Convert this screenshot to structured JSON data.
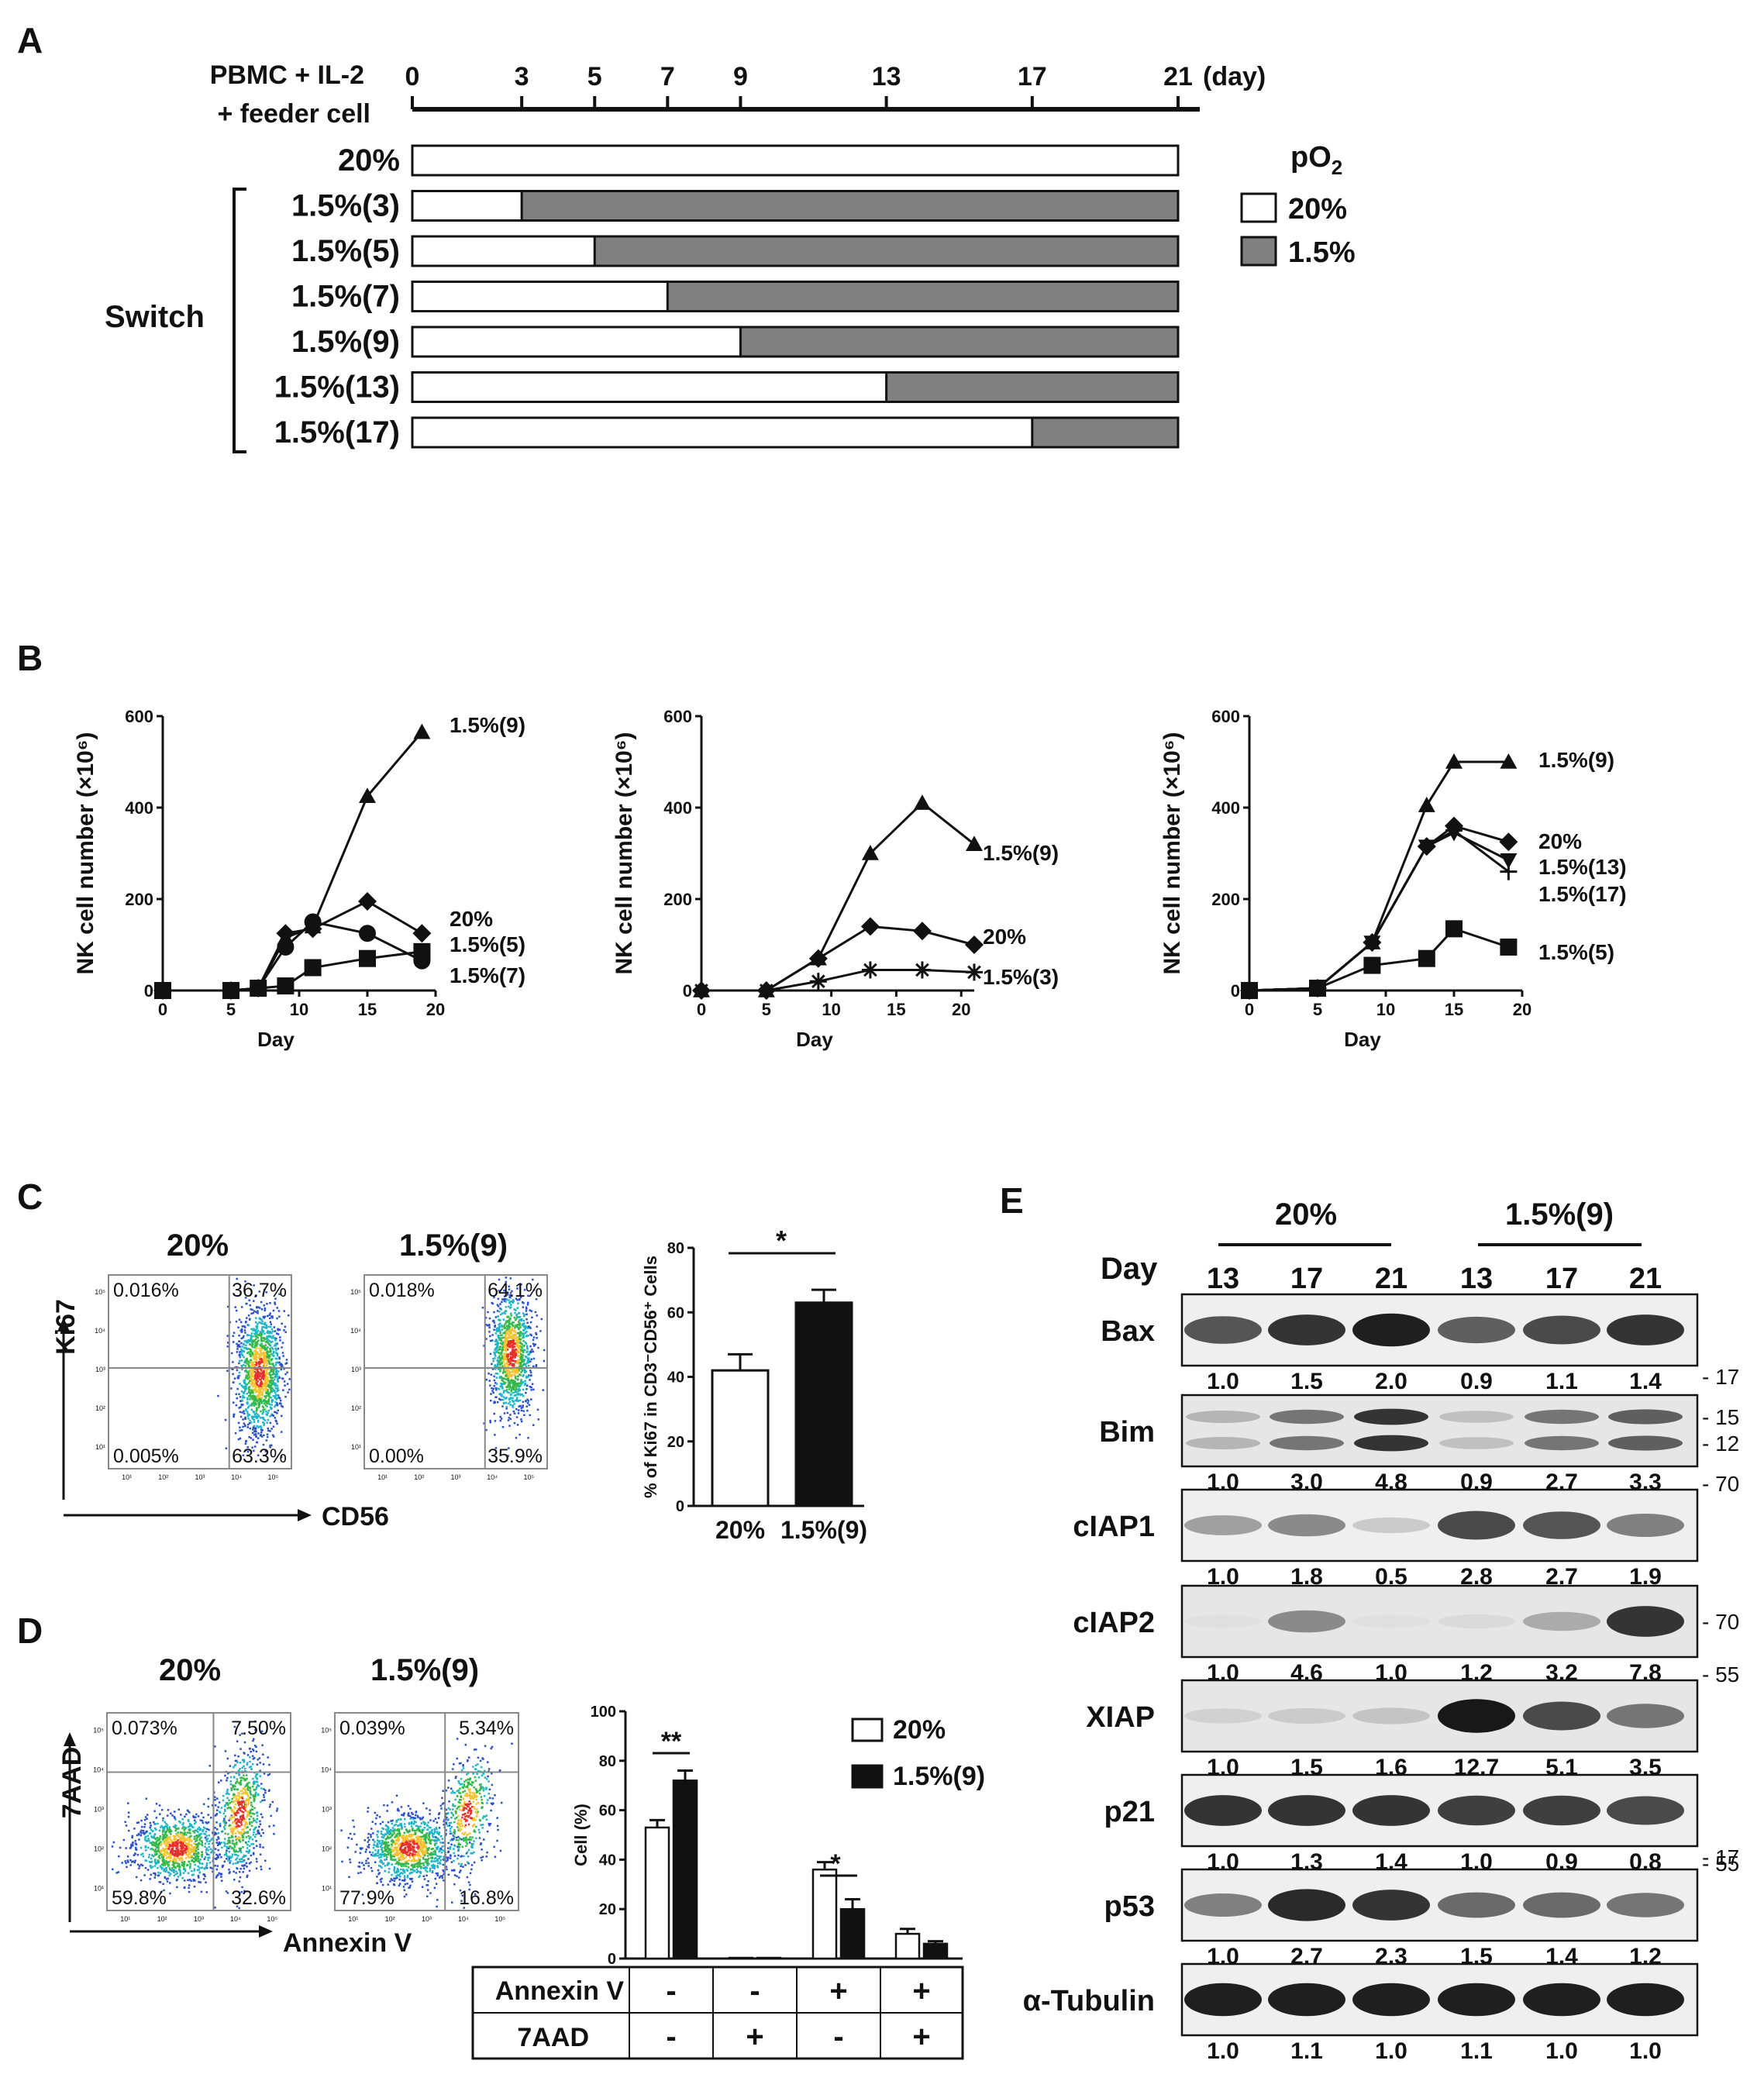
{
  "panels": {
    "A": {
      "letter": "A",
      "timeline_label_line1": "PBMC + IL-2",
      "timeline_label_line2": "+ feeder cell",
      "ticks": [
        0,
        3,
        5,
        7,
        9,
        13,
        17,
        21
      ],
      "tick_labels": [
        "0",
        "3",
        "5",
        "7",
        "9",
        "13",
        "17",
        "21"
      ],
      "unit": "(day)",
      "total_days": 21,
      "rows": [
        {
          "label": "20%",
          "switch_day": null
        },
        {
          "label": "1.5%(3)",
          "switch_day": 3
        },
        {
          "label": "1.5%(5)",
          "switch_day": 5
        },
        {
          "label": "1.5%(7)",
          "switch_day": 7
        },
        {
          "label": "1.5%(9)",
          "switch_day": 9
        },
        {
          "label": "1.5%(13)",
          "switch_day": 13
        },
        {
          "label": "1.5%(17)",
          "switch_day": 17
        }
      ],
      "switch_label": "Switch",
      "legend_title": "pO",
      "legend_title_sub": "2",
      "legend": [
        {
          "label": "20%",
          "color": "#ffffff"
        },
        {
          "label": "1.5%",
          "color": "#808080"
        }
      ]
    },
    "B": {
      "letter": "B"
    },
    "C": {
      "letter": "C",
      "flow_titles": [
        "20%",
        "1.5%(9)"
      ],
      "flow_quadrants": [
        {
          "ul": "0.016%",
          "ur": "36.7%",
          "ll": "0.005%",
          "lr": "63.3%"
        },
        {
          "ul": "0.018%",
          "ur": "64.1%",
          "ll": "0.00%",
          "lr": "35.9%"
        }
      ],
      "y_axis": "Ki67",
      "x_axis": "CD56",
      "flow_ticks": [
        "10¹",
        "10²",
        "10³",
        "10⁴",
        "10⁵"
      ],
      "star": "*"
    },
    "D": {
      "letter": "D",
      "flow_titles": [
        "20%",
        "1.5%(9)"
      ],
      "flow_quadrants": [
        {
          "ul": "0.073%",
          "ur": "7.50%",
          "ll": "59.8%",
          "lr": "32.6%"
        },
        {
          "ul": "0.039%",
          "ur": "5.34%",
          "ll": "77.9%",
          "lr": "16.8%"
        }
      ],
      "y_axis": "7AAD",
      "x_axis": "Annexin V",
      "legend": [
        "20%",
        "1.5%(9)"
      ],
      "table": {
        "row_labels": [
          "Annexin V",
          "7AAD"
        ],
        "annexin": [
          "-",
          "-",
          "+",
          "+"
        ],
        "aad": [
          "-",
          "+",
          "-",
          "+"
        ]
      },
      "stars": [
        "**",
        "*"
      ]
    },
    "E": {
      "letter": "E",
      "groups": [
        "20%",
        "1.5%(9)"
      ],
      "day_label": "Day",
      "days": [
        "13",
        "17",
        "21",
        "13",
        "17",
        "21"
      ],
      "blots": [
        {
          "name": "Bax",
          "values": [
            "1.0",
            "1.5",
            "2.0",
            "0.9",
            "1.1",
            "1.4"
          ],
          "intensity": [
            0.7,
            0.85,
            0.95,
            0.65,
            0.75,
            0.85
          ],
          "markers": [
            "17"
          ]
        },
        {
          "name": "Bim",
          "values": [
            "1.0",
            "3.0",
            "4.8",
            "0.9",
            "2.7",
            "3.3"
          ],
          "intensity": [
            0.25,
            0.55,
            0.85,
            0.2,
            0.55,
            0.65
          ],
          "markers": [
            "15",
            "12"
          ]
        },
        {
          "name": "cIAP1",
          "values": [
            "1.0",
            "1.8",
            "0.5",
            "2.8",
            "2.7",
            "1.9"
          ],
          "intensity": [
            0.35,
            0.45,
            0.15,
            0.75,
            0.7,
            0.5
          ],
          "markers": [
            "70"
          ]
        },
        {
          "name": "cIAP2",
          "values": [
            "1.0",
            "4.6",
            "1.0",
            "1.2",
            "3.2",
            "7.8"
          ],
          "intensity": [
            0.05,
            0.45,
            0.05,
            0.08,
            0.3,
            0.85
          ],
          "markers": [
            "70"
          ]
        },
        {
          "name": "XIAP",
          "values": [
            "1.0",
            "1.5",
            "1.6",
            "12.7",
            "5.1",
            "3.5"
          ],
          "intensity": [
            0.12,
            0.15,
            0.18,
            0.98,
            0.75,
            0.55
          ],
          "markers": [
            "55"
          ]
        },
        {
          "name": "p21",
          "values": [
            "1.0",
            "1.3",
            "1.4",
            "1.0",
            "0.9",
            "0.8"
          ],
          "intensity": [
            0.85,
            0.85,
            0.85,
            0.8,
            0.8,
            0.75
          ],
          "markers": [
            "17"
          ]
        },
        {
          "name": "p53",
          "values": [
            "1.0",
            "2.7",
            "2.3",
            "1.5",
            "1.4",
            "1.2"
          ],
          "intensity": [
            0.5,
            0.9,
            0.85,
            0.6,
            0.6,
            0.55
          ],
          "markers": [
            "55"
          ]
        },
        {
          "name": "α-Tubulin",
          "values": [
            "1.0",
            "1.1",
            "1.0",
            "1.1",
            "1.0",
            "1.0"
          ],
          "intensity": [
            0.95,
            0.95,
            0.95,
            0.95,
            0.95,
            0.95
          ],
          "markers": []
        }
      ]
    }
  },
  "chart_data": [
    {
      "type": "line",
      "panel": "B-1",
      "xlabel": "Day",
      "ylabel": "NK cell number (×10⁶)",
      "xlim": [
        0,
        20
      ],
      "ylim": [
        0,
        600
      ],
      "xticks": [
        0,
        5,
        10,
        15,
        20
      ],
      "yticks": [
        0,
        200,
        400,
        600
      ],
      "series": [
        {
          "name": "1.5%(9)",
          "marker": "triangle",
          "x": [
            0,
            5,
            7,
            9,
            11,
            15,
            19
          ],
          "y": [
            0,
            0,
            5,
            115,
            140,
            425,
            565
          ]
        },
        {
          "name": "20%",
          "marker": "diamond",
          "x": [
            0,
            5,
            7,
            9,
            11,
            15,
            19
          ],
          "y": [
            0,
            0,
            5,
            125,
            135,
            195,
            125
          ]
        },
        {
          "name": "1.5%(5)",
          "marker": "circle",
          "x": [
            0,
            5,
            7,
            9,
            11,
            15,
            19
          ],
          "y": [
            0,
            0,
            5,
            95,
            150,
            125,
            65
          ]
        },
        {
          "name": "1.5%(7)",
          "marker": "square",
          "x": [
            0,
            5,
            7,
            9,
            11,
            15,
            19
          ],
          "y": [
            0,
            0,
            5,
            10,
            50,
            70,
            85
          ]
        }
      ]
    },
    {
      "type": "line",
      "panel": "B-2",
      "xlabel": "Day",
      "ylabel": "NK cell number (×10⁶)",
      "xlim": [
        0,
        21
      ],
      "ylim": [
        0,
        600
      ],
      "xticks": [
        0,
        5,
        10,
        15,
        20
      ],
      "yticks": [
        0,
        200,
        400,
        600
      ],
      "series": [
        {
          "name": "1.5%(9)",
          "marker": "triangle",
          "x": [
            0,
            5,
            9,
            13,
            17,
            21
          ],
          "y": [
            0,
            0,
            70,
            300,
            410,
            320
          ]
        },
        {
          "name": "20%",
          "marker": "diamond",
          "x": [
            0,
            5,
            9,
            13,
            17,
            21
          ],
          "y": [
            0,
            0,
            70,
            140,
            130,
            100
          ]
        },
        {
          "name": "1.5%(3)",
          "marker": "star",
          "x": [
            0,
            5,
            9,
            13,
            17,
            21
          ],
          "y": [
            0,
            0,
            20,
            45,
            45,
            40
          ]
        }
      ]
    },
    {
      "type": "line",
      "panel": "B-3",
      "xlabel": "Day",
      "ylabel": "NK cell number (×10⁶)",
      "xlim": [
        0,
        20
      ],
      "ylim": [
        0,
        600
      ],
      "xticks": [
        0,
        5,
        10,
        15,
        20
      ],
      "yticks": [
        0,
        200,
        400,
        600
      ],
      "series": [
        {
          "name": "1.5%(9)",
          "marker": "triangle",
          "x": [
            0,
            5,
            9,
            13,
            15,
            19
          ],
          "y": [
            0,
            5,
            105,
            405,
            500,
            500
          ]
        },
        {
          "name": "20%",
          "marker": "diamond",
          "x": [
            0,
            5,
            9,
            13,
            15,
            19
          ],
          "y": [
            0,
            5,
            105,
            315,
            360,
            325
          ]
        },
        {
          "name": "1.5%(13)",
          "marker": "triangle-down",
          "x": [
            0,
            5,
            9,
            13,
            15,
            19
          ],
          "y": [
            0,
            5,
            105,
            315,
            345,
            285
          ]
        },
        {
          "name": "1.5%(17)",
          "marker": "plus",
          "x": [
            0,
            5,
            9,
            13,
            15,
            19
          ],
          "y": [
            0,
            5,
            105,
            315,
            350,
            260
          ]
        },
        {
          "name": "1.5%(5)",
          "marker": "square",
          "x": [
            0,
            5,
            9,
            13,
            15,
            19
          ],
          "y": [
            0,
            5,
            55,
            70,
            135,
            95
          ]
        }
      ]
    },
    {
      "type": "bar",
      "panel": "C",
      "categories": [
        "20%",
        "1.5%(9)"
      ],
      "values": [
        42,
        63
      ],
      "errors": [
        5,
        4
      ],
      "ylabel": "% of Ki67 in CD3⁻CD56⁺ Cells",
      "ylim": [
        0,
        80
      ],
      "yticks": [
        0,
        20,
        40,
        60,
        80
      ]
    },
    {
      "type": "bar",
      "panel": "D",
      "categories": [
        "AnnexinV- 7AAD-",
        "AnnexinV- 7AAD+",
        "AnnexinV+ 7AAD-",
        "AnnexinV+ 7AAD+"
      ],
      "ylabel": "Cell (%)",
      "ylim": [
        0,
        100
      ],
      "yticks": [
        0,
        20,
        40,
        60,
        80,
        100
      ],
      "series": [
        {
          "name": "20%",
          "values": [
            53,
            0.3,
            36,
            10
          ],
          "errors": [
            3,
            0.2,
            3,
            2
          ]
        },
        {
          "name": "1.5%(9)",
          "values": [
            72,
            0.3,
            20,
            6
          ],
          "errors": [
            4,
            0.2,
            4,
            1
          ]
        }
      ]
    }
  ]
}
